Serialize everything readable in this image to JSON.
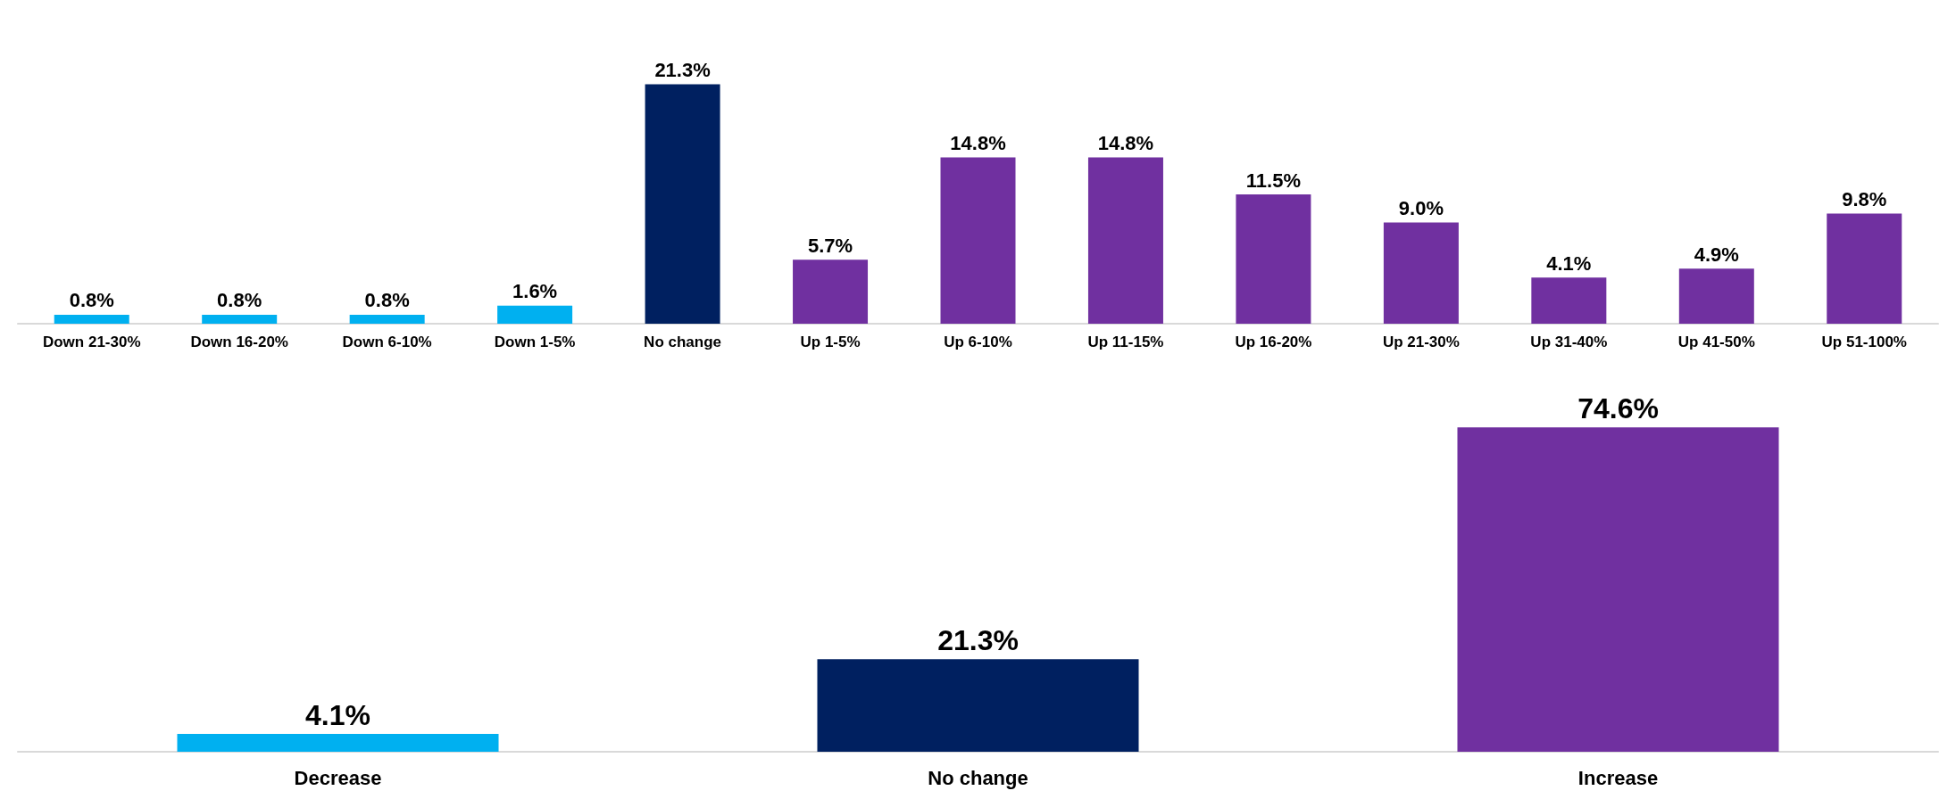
{
  "chart_data": [
    {
      "type": "bar",
      "categories": [
        "Down 21-30%",
        "Down 16-20%",
        "Down 6-10%",
        "Down 1-5%",
        "No change",
        "Up 1-5%",
        "Up 6-10%",
        "Up 11-15%",
        "Up 16-20%",
        "Up 21-30%",
        "Up 31-40%",
        "Up 41-50%",
        "Up 51-100%"
      ],
      "values": [
        0.8,
        0.8,
        0.8,
        1.6,
        21.3,
        5.7,
        14.8,
        14.8,
        11.5,
        9.0,
        4.1,
        4.9,
        9.8
      ],
      "value_labels": [
        "0.8%",
        "0.8%",
        "0.8%",
        "1.6%",
        "21.3%",
        "5.7%",
        "14.8%",
        "14.8%",
        "11.5%",
        "9.0%",
        "4.1%",
        "4.9%",
        "9.8%"
      ],
      "colors": [
        "#00b0f0",
        "#00b0f0",
        "#00b0f0",
        "#00b0f0",
        "#002060",
        "#7030a0",
        "#7030a0",
        "#7030a0",
        "#7030a0",
        "#7030a0",
        "#7030a0",
        "#7030a0",
        "#7030a0"
      ]
    },
    {
      "type": "bar",
      "categories": [
        "Decrease",
        "No change",
        "Increase"
      ],
      "values": [
        4.1,
        21.3,
        74.6
      ],
      "value_labels": [
        "4.1%",
        "21.3%",
        "74.6%"
      ],
      "colors": [
        "#00b0f0",
        "#002060",
        "#7030a0"
      ]
    }
  ]
}
